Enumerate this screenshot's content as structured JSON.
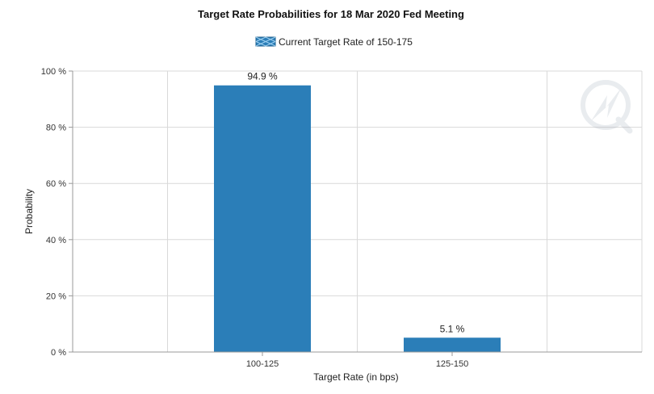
{
  "chart_data": {
    "type": "bar",
    "title": "Target Rate Probabilities for 18 Mar 2020 Fed Meeting",
    "xlabel": "Target Rate (in bps)",
    "ylabel": "Probability",
    "categories": [
      "100-125",
      "125-150"
    ],
    "series": [
      {
        "name": "Current Target Rate of 150-175",
        "values": [
          94.9,
          5.1
        ],
        "data_labels": [
          "94.9 %",
          "5.1 %"
        ]
      }
    ],
    "ylim": [
      0,
      100
    ],
    "yticks": [
      0,
      20,
      40,
      60,
      80,
      100
    ],
    "ytick_labels": [
      "0 %",
      "20 %",
      "40 %",
      "60 %",
      "80 %",
      "100 %"
    ],
    "grid": true,
    "legend_position": "top-center",
    "colors": {
      "bar": "#2b7eb8",
      "legend_swatch": "#2b7eb8"
    }
  }
}
